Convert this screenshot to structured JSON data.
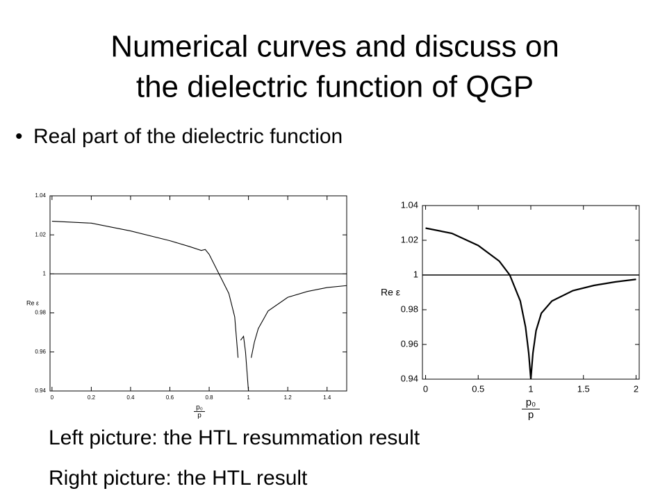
{
  "title": [
    "Numerical curves and discuss on",
    "the dielectric function of QGP"
  ],
  "bullet": "Real part of the dielectric function",
  "captions": [
    "Left picture: the HTL resummation result",
    "Right picture: the HTL result"
  ],
  "chart_data": [
    {
      "type": "line",
      "ylabel": "Re ε",
      "xlabel": {
        "numerator": "p₀",
        "denominator": "p"
      },
      "x": [
        0,
        0.2,
        0.4,
        0.6,
        0.7,
        0.76,
        0.78,
        0.8,
        0.85,
        0.9,
        0.93,
        0.947,
        0.95,
        0.96,
        0.975,
        0.985,
        1.0,
        1.005,
        1.014,
        1.03,
        1.05,
        1.1,
        1.2,
        1.3,
        1.4,
        1.5
      ],
      "values": [
        1.027,
        1.026,
        1.022,
        1.017,
        1.014,
        1.012,
        1.0125,
        1.01,
        1.0,
        0.99,
        0.978,
        0.957,
        null,
        0.966,
        0.968,
        0.96,
        0.94,
        null,
        0.957,
        0.965,
        0.972,
        0.981,
        0.988,
        0.991,
        0.993,
        0.994
      ],
      "reference_line": 1,
      "color": "#000000",
      "xlim": [
        -0.01,
        1.5
      ],
      "ylim": [
        0.94,
        1.04
      ],
      "xticks": [
        0,
        0.2,
        0.4,
        0.6,
        0.8,
        1,
        1.2,
        1.4
      ],
      "yticks": [
        0.94,
        0.96,
        0.98,
        1,
        1.02,
        1.04
      ]
    },
    {
      "type": "line",
      "ylabel": "Re ε",
      "xlabel": {
        "numerator": "p₀",
        "denominator": "p"
      },
      "x": [
        0,
        0.25,
        0.5,
        0.7,
        0.8,
        0.9,
        0.95,
        0.98,
        1.0,
        1.02,
        1.05,
        1.1,
        1.2,
        1.4,
        1.6,
        1.8,
        2.0
      ],
      "values": [
        1.027,
        1.024,
        1.017,
        1.008,
        1.0,
        0.985,
        0.97,
        0.955,
        0.94,
        0.955,
        0.968,
        0.978,
        0.985,
        0.991,
        0.994,
        0.996,
        0.9975
      ],
      "reference_line": 1,
      "color": "#000000",
      "xlim": [
        -0.03,
        2.03
      ],
      "ylim": [
        0.94,
        1.04
      ],
      "xticks": [
        0,
        0.5,
        1,
        1.5,
        2
      ],
      "yticks": [
        0.94,
        0.96,
        0.98,
        1,
        1.02,
        1.04
      ]
    }
  ]
}
